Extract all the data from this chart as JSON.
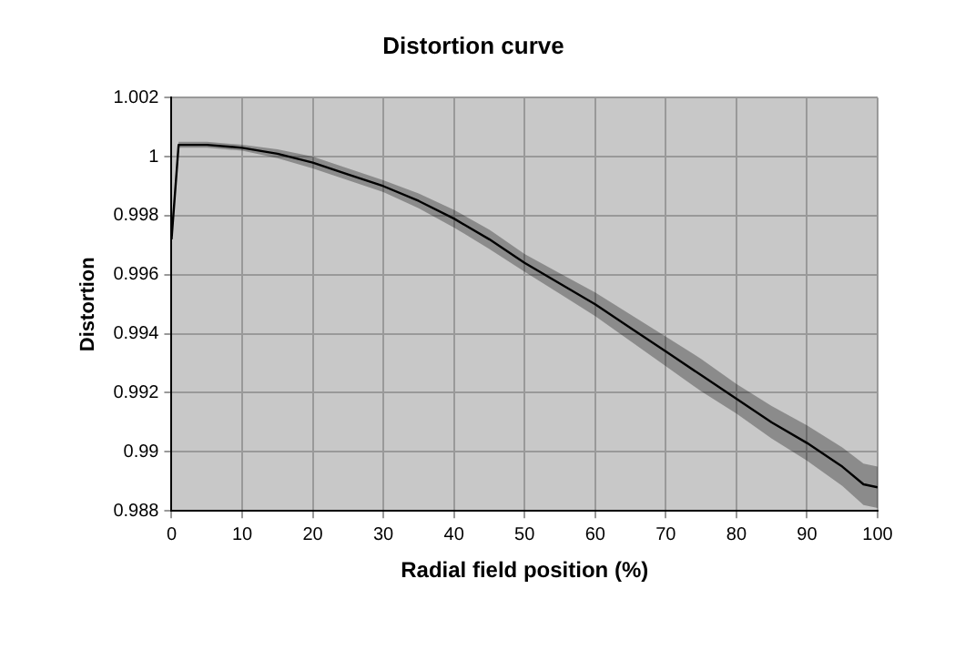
{
  "chart_data": {
    "type": "line",
    "title": "Distortion curve",
    "xlabel": "Radial field position (%)",
    "ylabel": "Distortion",
    "x": [
      0,
      1,
      2,
      5,
      10,
      15,
      20,
      25,
      30,
      35,
      40,
      45,
      50,
      55,
      60,
      65,
      70,
      75,
      80,
      85,
      90,
      95,
      98,
      100
    ],
    "series": [
      {
        "color": "#000000",
        "values": [
          0.9972,
          1.0004,
          1.0004,
          1.0004,
          1.0003,
          1.0001,
          0.9998,
          0.9994,
          0.999,
          0.9985,
          0.9979,
          0.9972,
          0.9964,
          0.9957,
          0.995,
          0.9942,
          0.9934,
          0.9926,
          0.9918,
          0.991,
          0.9903,
          0.9895,
          0.9889,
          0.9888
        ],
        "lower": [
          0.9971,
          1.0003,
          1.0003,
          1.0003,
          1.0002,
          0.99995,
          0.9996,
          0.9992,
          0.9988,
          0.99825,
          0.9976,
          0.99687,
          0.9961,
          0.99535,
          0.9946,
          0.99375,
          0.9929,
          0.99205,
          0.9913,
          0.99045,
          0.9897,
          0.98885,
          0.9882,
          0.9881
        ],
        "upper": [
          0.9973,
          1.0005,
          1.0005,
          1.0005,
          1.0004,
          1.00025,
          1.0,
          0.9996,
          0.9992,
          0.99875,
          0.9982,
          0.99753,
          0.9967,
          0.99605,
          0.9954,
          0.99465,
          0.9939,
          0.99315,
          0.9923,
          0.99155,
          0.9909,
          0.99015,
          0.9896,
          0.9895
        ]
      }
    ],
    "xlim": [
      0,
      100
    ],
    "xticks": [
      0,
      10,
      20,
      30,
      40,
      50,
      60,
      70,
      80,
      90,
      100
    ],
    "ylim": [
      0.988,
      1.002
    ],
    "yticks": [
      0.988,
      0.99,
      0.992,
      0.994,
      0.996,
      0.998,
      1,
      1.002
    ],
    "grid": true,
    "legend": false
  }
}
